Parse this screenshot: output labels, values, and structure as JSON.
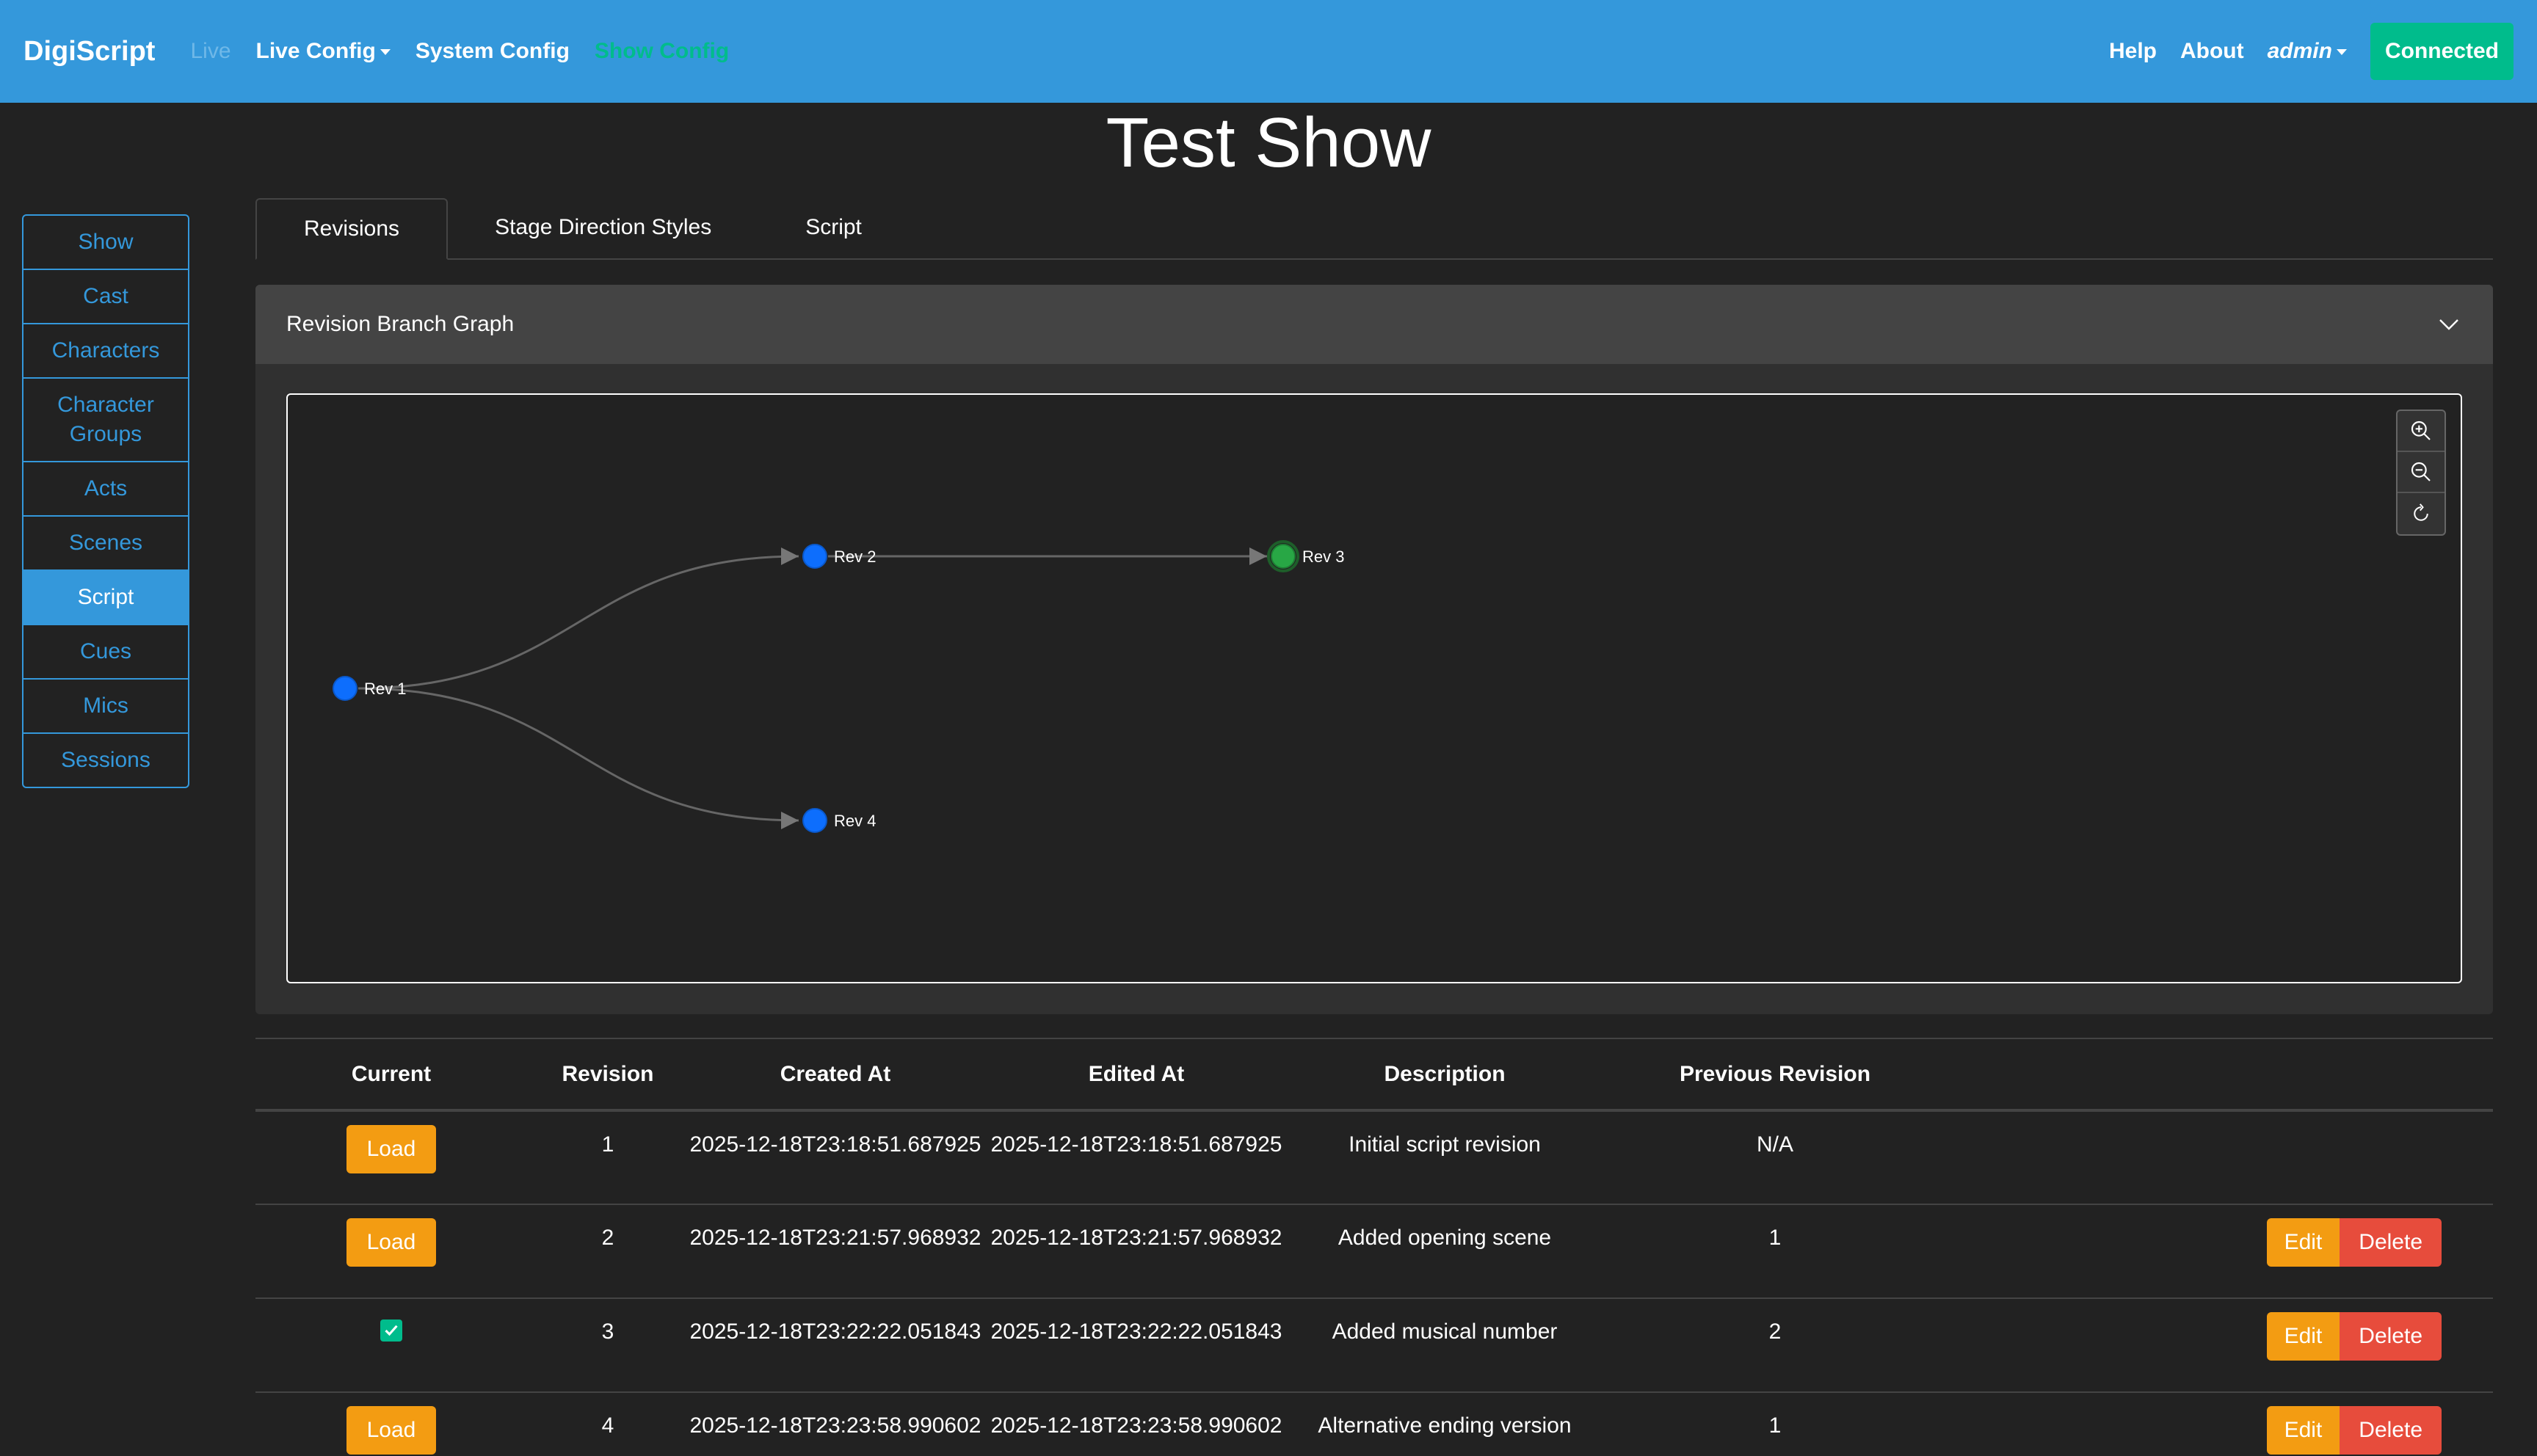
{
  "nav": {
    "brand": "DigiScript",
    "live": "Live",
    "live_config": "Live Config",
    "system_config": "System Config",
    "show_config": "Show Config",
    "help": "Help",
    "about": "About",
    "user": "admin",
    "status": "Connected"
  },
  "page": {
    "title": "Test Show"
  },
  "sidebar": {
    "items": [
      {
        "label": "Show"
      },
      {
        "label": "Cast"
      },
      {
        "label": "Characters"
      },
      {
        "label": "Character Groups"
      },
      {
        "label": "Acts"
      },
      {
        "label": "Scenes"
      },
      {
        "label": "Script",
        "active": true
      },
      {
        "label": "Cues"
      },
      {
        "label": "Mics"
      },
      {
        "label": "Sessions"
      }
    ]
  },
  "tabs": [
    {
      "label": "Revisions",
      "active": true
    },
    {
      "label": "Stage Direction Styles"
    },
    {
      "label": "Script"
    }
  ],
  "graph_panel": {
    "title": "Revision Branch Graph",
    "nodes": [
      {
        "label": "Rev 1",
        "current": false
      },
      {
        "label": "Rev 2",
        "current": false
      },
      {
        "label": "Rev 3",
        "current": true
      },
      {
        "label": "Rev 4",
        "current": false
      }
    ],
    "edges": [
      [
        "Rev 1",
        "Rev 2"
      ],
      [
        "Rev 2",
        "Rev 3"
      ],
      [
        "Rev 1",
        "Rev 4"
      ]
    ],
    "node_color": "#0d6efd",
    "current_node_color": "#28a745"
  },
  "table": {
    "headers": [
      "Current",
      "Revision",
      "Created At",
      "Edited At",
      "Description",
      "Previous Revision",
      ""
    ],
    "rows": [
      {
        "current": false,
        "load_label": "Load",
        "revision": "1",
        "created": "2025-12-18T23:18:51.687925",
        "edited": "2025-12-18T23:18:51.687925",
        "description": "Initial script revision",
        "previous": "N/A",
        "actions": false
      },
      {
        "current": false,
        "load_label": "Load",
        "revision": "2",
        "created": "2025-12-18T23:21:57.968932",
        "edited": "2025-12-18T23:21:57.968932",
        "description": "Added opening scene",
        "previous": "1",
        "actions": true
      },
      {
        "current": true,
        "load_label": "",
        "revision": "3",
        "created": "2025-12-18T23:22:22.051843",
        "edited": "2025-12-18T23:22:22.051843",
        "description": "Added musical number",
        "previous": "2",
        "actions": true
      },
      {
        "current": false,
        "load_label": "Load",
        "revision": "4",
        "created": "2025-12-18T23:23:58.990602",
        "edited": "2025-12-18T23:23:58.990602",
        "description": "Alternative ending version",
        "previous": "1",
        "actions": true
      }
    ],
    "edit_label": "Edit",
    "delete_label": "Delete"
  },
  "colors": {
    "navbar": "#3498db",
    "success": "#00bc8c",
    "warning": "#f39c12",
    "danger": "#e74c3c",
    "background": "#222222"
  }
}
